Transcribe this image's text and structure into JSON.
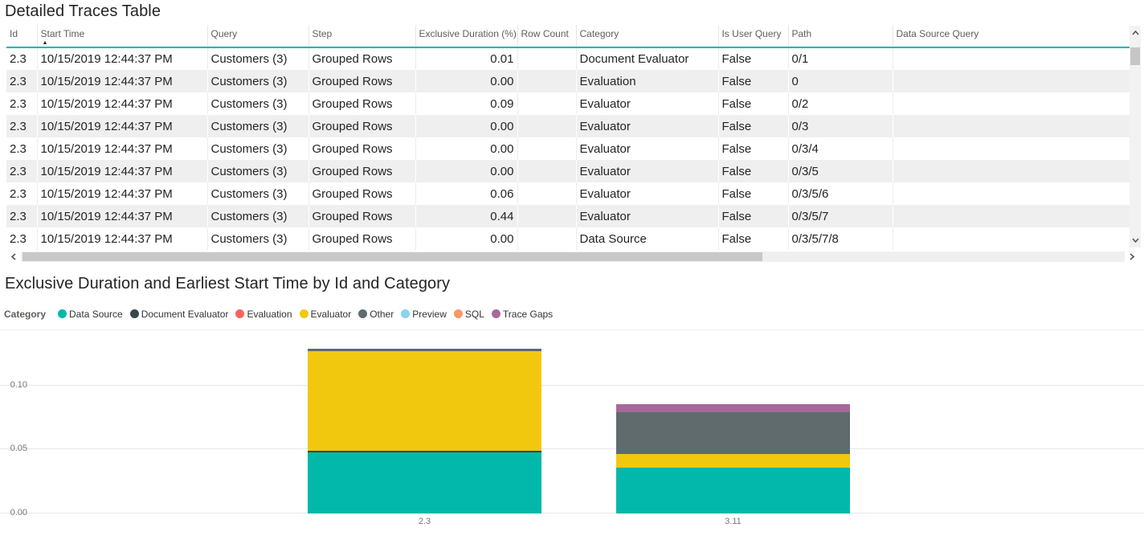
{
  "table": {
    "title": "Detailed Traces Table",
    "columns": [
      {
        "label": "Id"
      },
      {
        "label": "Start Time",
        "sorted": true
      },
      {
        "label": "Query"
      },
      {
        "label": "Step"
      },
      {
        "label": "Exclusive Duration (%)"
      },
      {
        "label": "Row Count"
      },
      {
        "label": "Category"
      },
      {
        "label": "Is User Query"
      },
      {
        "label": "Path"
      },
      {
        "label": "Data Source Query"
      }
    ],
    "sort": {
      "column": "Start Time",
      "direction": "ascending"
    },
    "rows": [
      [
        "2.3",
        "10/15/2019 12:44:37 PM",
        "Customers (3)",
        "Grouped Rows",
        "0.01",
        "",
        "Document Evaluator",
        "False",
        "0/1",
        ""
      ],
      [
        "2.3",
        "10/15/2019 12:44:37 PM",
        "Customers (3)",
        "Grouped Rows",
        "0.00",
        "",
        "Evaluation",
        "False",
        "0",
        ""
      ],
      [
        "2.3",
        "10/15/2019 12:44:37 PM",
        "Customers (3)",
        "Grouped Rows",
        "0.09",
        "",
        "Evaluator",
        "False",
        "0/2",
        ""
      ],
      [
        "2.3",
        "10/15/2019 12:44:37 PM",
        "Customers (3)",
        "Grouped Rows",
        "0.00",
        "",
        "Evaluator",
        "False",
        "0/3",
        ""
      ],
      [
        "2.3",
        "10/15/2019 12:44:37 PM",
        "Customers (3)",
        "Grouped Rows",
        "0.00",
        "",
        "Evaluator",
        "False",
        "0/3/4",
        ""
      ],
      [
        "2.3",
        "10/15/2019 12:44:37 PM",
        "Customers (3)",
        "Grouped Rows",
        "0.00",
        "",
        "Evaluator",
        "False",
        "0/3/5",
        ""
      ],
      [
        "2.3",
        "10/15/2019 12:44:37 PM",
        "Customers (3)",
        "Grouped Rows",
        "0.06",
        "",
        "Evaluator",
        "False",
        "0/3/5/6",
        ""
      ],
      [
        "2.3",
        "10/15/2019 12:44:37 PM",
        "Customers (3)",
        "Grouped Rows",
        "0.44",
        "",
        "Evaluator",
        "False",
        "0/3/5/7",
        ""
      ],
      [
        "2.3",
        "10/15/2019 12:44:37 PM",
        "Customers (3)",
        "Grouped Rows",
        "0.00",
        "",
        "Data Source",
        "False",
        "0/3/5/7/8",
        ""
      ]
    ]
  },
  "chart_data": {
    "type": "bar",
    "stacked": true,
    "title": "Exclusive Duration and Earliest Start Time by Id and Category",
    "legend_title": "Category",
    "legend_position": "top",
    "grid": true,
    "categories": [
      "2.3",
      "3.11"
    ],
    "series": [
      {
        "name": "Data Source",
        "color": "#01B8AA",
        "values": [
          0.048,
          0.036
        ]
      },
      {
        "name": "Document Evaluator",
        "color": "#374649",
        "values": [
          0.001,
          0.0
        ]
      },
      {
        "name": "Evaluation",
        "color": "#FD625E",
        "values": [
          0.0,
          0.0
        ]
      },
      {
        "name": "Evaluator",
        "color": "#F2C80F",
        "values": [
          0.078,
          0.011
        ]
      },
      {
        "name": "Other",
        "color": "#5F6B6D",
        "values": [
          0.002,
          0.033
        ]
      },
      {
        "name": "Preview",
        "color": "#8AD4EB",
        "values": [
          0.0,
          0.0
        ]
      },
      {
        "name": "SQL",
        "color": "#FE9666",
        "values": [
          0.0,
          0.0
        ]
      },
      {
        "name": "Trace Gaps",
        "color": "#A66999",
        "values": [
          0.0,
          0.006
        ]
      }
    ],
    "xlabel": "",
    "ylabel": "",
    "ylim": [
      0,
      0.144
    ],
    "yticks": [
      0,
      0.05,
      0.1
    ],
    "ytick_labels": [
      "0.00",
      "0.05",
      "0.10"
    ]
  }
}
